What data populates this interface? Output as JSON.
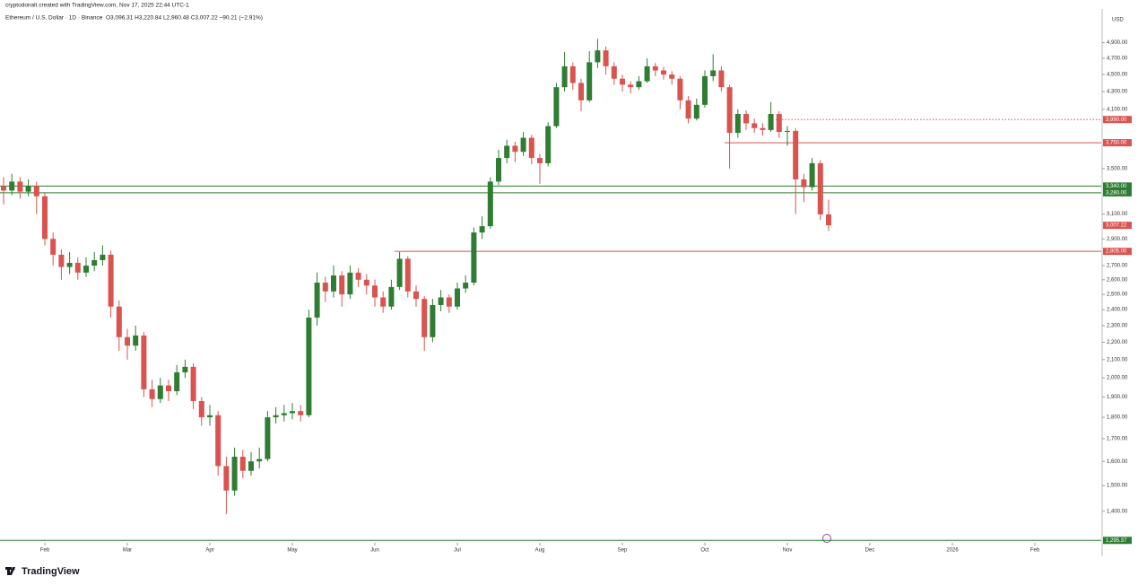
{
  "header": {
    "attribution": "cryptodonalt created with TradingView.com, Nov 17, 2025 22:44 UTC-1",
    "symbol": "Ethereum / U.S. Dollar · 1D · Binance",
    "ohlc": "O3,096.31 H3,220.84 L2,960.48 C3,007.22 −90.21 (−2.91%)"
  },
  "chart_data": {
    "type": "candlestick",
    "currency": "USD",
    "brand": "TradingView",
    "log_scale": true,
    "grid": false,
    "up_color": "#2e7d32",
    "down_color": "#d9534f",
    "categories": [
      null,
      null,
      null,
      null,
      null,
      "Feb",
      null,
      null,
      null,
      null,
      null,
      null,
      null,
      null,
      null,
      "Mar",
      null,
      null,
      null,
      null,
      null,
      null,
      null,
      null,
      null,
      "Apr",
      null,
      null,
      null,
      null,
      null,
      null,
      null,
      null,
      null,
      "May",
      null,
      null,
      null,
      null,
      null,
      null,
      null,
      null,
      null,
      "Jun",
      null,
      null,
      null,
      null,
      null,
      null,
      null,
      null,
      null,
      "Jul",
      null,
      null,
      null,
      null,
      null,
      null,
      null,
      null,
      null,
      "Aug",
      null,
      null,
      null,
      null,
      null,
      null,
      null,
      null,
      null,
      "Sep",
      null,
      null,
      null,
      null,
      null,
      null,
      null,
      null,
      null,
      "Oct",
      null,
      null,
      null,
      null,
      null,
      null,
      null,
      null,
      null,
      "Nov",
      null,
      null,
      null,
      null,
      null,
      null,
      null,
      null,
      null,
      "Dec",
      null,
      null,
      null,
      null,
      null,
      null,
      null,
      null,
      null,
      "2026",
      null,
      null,
      null,
      null,
      null,
      null,
      null,
      null,
      null,
      "Feb",
      null,
      null,
      null,
      null,
      null,
      null,
      null,
      null
    ],
    "open": [
      3340,
      3300,
      3380,
      3290,
      3340,
      3250,
      2900,
      2780,
      2690,
      2720,
      2650,
      2700,
      2740,
      2780,
      2420,
      2230,
      2180,
      2240,
      1940,
      1890,
      1960,
      1930,
      2030,
      2060,
      1880,
      1800,
      1810,
      1580,
      1480,
      1620,
      1560,
      1600,
      1610,
      1800,
      1810,
      1820,
      1830,
      1810,
      2350,
      2580,
      2520,
      2630,
      2500,
      2650,
      2600,
      2560,
      2480,
      2420,
      2550,
      2750,
      2520,
      2470,
      2230,
      2430,
      2480,
      2420,
      2540,
      2580,
      2950,
      3000,
      3380,
      3600,
      3720,
      3660,
      3800,
      3600,
      3550,
      3920,
      4350,
      4600,
      4400,
      4200,
      4650,
      4800,
      4600,
      4450,
      4380,
      4350,
      4420,
      4600,
      4550,
      4500,
      4450,
      4200,
      4000,
      4150,
      4480,
      4550,
      4350,
      3850,
      4050,
      3950,
      3900,
      3880,
      4050,
      3860,
      3870,
      3400,
      3330,
      3550,
      3096.31,
      null,
      null,
      null,
      null,
      null,
      null,
      null,
      null,
      null,
      null,
      null,
      null,
      null,
      null,
      null,
      null,
      null,
      null,
      null,
      null,
      null,
      null,
      null,
      null,
      null,
      null,
      null,
      null,
      null,
      null,
      null,
      null,
      null
    ],
    "high": [
      3420,
      3450,
      3420,
      3400,
      3380,
      3280,
      2950,
      2820,
      2800,
      2760,
      2760,
      2800,
      2850,
      2810,
      2460,
      2280,
      2300,
      2260,
      1990,
      2000,
      1990,
      2070,
      2100,
      2080,
      1900,
      1860,
      1830,
      1620,
      1660,
      1650,
      1640,
      1660,
      1830,
      1850,
      1860,
      1870,
      1860,
      2400,
      2650,
      2620,
      2700,
      2660,
      2700,
      2680,
      2640,
      2600,
      2520,
      2600,
      2800,
      2770,
      2560,
      2490,
      2470,
      2530,
      2500,
      2580,
      2630,
      2990,
      3080,
      3420,
      3680,
      3780,
      3760,
      3860,
      3830,
      3640,
      3960,
      4400,
      4780,
      4650,
      4450,
      4790,
      4950,
      4850,
      4650,
      4500,
      4420,
      4480,
      4700,
      4640,
      4590,
      4540,
      4480,
      4250,
      4220,
      4550,
      4750,
      4600,
      4380,
      4100,
      4090,
      4000,
      3950,
      4180,
      4080,
      3920,
      3900,
      3450,
      3600,
      3580,
      3220.84,
      null,
      null,
      null,
      null,
      null,
      null,
      null,
      null,
      null,
      null,
      null,
      null,
      null,
      null,
      null,
      null,
      null,
      null,
      null,
      null,
      null,
      null,
      null,
      null,
      null,
      null,
      null,
      null,
      null,
      null,
      null,
      null,
      null
    ],
    "low": [
      3180,
      3260,
      3230,
      3250,
      3100,
      2850,
      2700,
      2600,
      2640,
      2600,
      2620,
      2660,
      2700,
      2350,
      2150,
      2100,
      2150,
      1900,
      1850,
      1870,
      1880,
      1910,
      2000,
      1840,
      1760,
      1760,
      1540,
      1390,
      1460,
      1530,
      1540,
      1570,
      1600,
      1770,
      1780,
      1790,
      1780,
      1800,
      2300,
      2450,
      2480,
      2420,
      2470,
      2550,
      2500,
      2420,
      2380,
      2400,
      2530,
      2480,
      2420,
      2150,
      2200,
      2390,
      2380,
      2400,
      2510,
      2560,
      2900,
      2980,
      3350,
      3550,
      3560,
      3620,
      3540,
      3360,
      3520,
      3900,
      4300,
      4320,
      4080,
      4180,
      4580,
      4500,
      4380,
      4300,
      4280,
      4320,
      4400,
      4480,
      4440,
      4380,
      4100,
      3950,
      3980,
      4120,
      4420,
      4300,
      3500,
      3800,
      3880,
      3850,
      3820,
      3860,
      3800,
      3720,
      3100,
      3200,
      3300,
      3050,
      2960.48,
      null,
      null,
      null,
      null,
      null,
      null,
      null,
      null,
      null,
      null,
      null,
      null,
      null,
      null,
      null,
      null,
      null,
      null,
      null,
      null,
      null,
      null,
      null,
      null,
      null,
      null,
      null,
      null,
      null,
      null,
      null,
      null,
      null
    ],
    "close": [
      3300,
      3380,
      3290,
      3340,
      3250,
      2900,
      2780,
      2690,
      2720,
      2650,
      2700,
      2740,
      2780,
      2420,
      2230,
      2180,
      2240,
      1940,
      1890,
      1960,
      1930,
      2030,
      2060,
      1880,
      1800,
      1810,
      1580,
      1480,
      1620,
      1560,
      1600,
      1610,
      1800,
      1810,
      1820,
      1830,
      1810,
      2350,
      2580,
      2520,
      2630,
      2500,
      2650,
      2600,
      2560,
      2480,
      2420,
      2550,
      2750,
      2520,
      2470,
      2230,
      2430,
      2480,
      2420,
      2540,
      2580,
      2950,
      3000,
      3380,
      3600,
      3720,
      3660,
      3800,
      3600,
      3550,
      3920,
      4350,
      4600,
      4400,
      4200,
      4650,
      4800,
      4600,
      4450,
      4380,
      4350,
      4420,
      4600,
      4550,
      4500,
      4450,
      4200,
      4000,
      4150,
      4480,
      4550,
      4350,
      3850,
      4050,
      3950,
      3900,
      3880,
      4050,
      3860,
      3870,
      3400,
      3330,
      3550,
      3096.31,
      3007.22,
      null,
      null,
      null,
      null,
      null,
      null,
      null,
      null,
      null,
      null,
      null,
      null,
      null,
      null,
      null,
      null,
      null,
      null,
      null,
      null,
      null,
      null,
      null,
      null,
      null,
      null,
      null,
      null,
      null,
      null,
      null,
      null,
      null
    ],
    "last_price_label": "3,007.22",
    "ylim": [
      1290,
      5260
    ],
    "yticks": [
      {
        "value": 1400,
        "label": "1,400.00"
      },
      {
        "value": 1500,
        "label": "1,500.00"
      },
      {
        "value": 1600,
        "label": "1,600.00"
      },
      {
        "value": 1700,
        "label": "1,700.00"
      },
      {
        "value": 1800,
        "label": "1,800.00"
      },
      {
        "value": 1900,
        "label": "1,900.00"
      },
      {
        "value": 2000,
        "label": "2,000.00"
      },
      {
        "value": 2100,
        "label": "2,100.00"
      },
      {
        "value": 2200,
        "label": "2,200.00"
      },
      {
        "value": 2300,
        "label": "2,300.00"
      },
      {
        "value": 2400,
        "label": "2,400.00"
      },
      {
        "value": 2500,
        "label": "2,500.00"
      },
      {
        "value": 2600,
        "label": "2,600.00"
      },
      {
        "value": 2700,
        "label": "2,700.00"
      },
      {
        "value": 2900,
        "label": "2,900.00"
      },
      {
        "value": 3100,
        "label": "3,100.00"
      },
      {
        "value": 3500,
        "label": "3,500.00"
      },
      {
        "value": 4100,
        "label": "4,100.00"
      },
      {
        "value": 4300,
        "label": "4,300.00"
      },
      {
        "value": 4500,
        "label": "4,500.00"
      },
      {
        "value": 4700,
        "label": "4,700.00"
      },
      {
        "value": 4900,
        "label": "4,900.00"
      }
    ],
    "levels": [
      {
        "value": 3340,
        "label": "3,340.00",
        "color": "#2e7d32",
        "style": "solid"
      },
      {
        "value": 3280,
        "label": "3,280.00",
        "color": "#2e7d32",
        "style": "solid"
      },
      {
        "value": 3750,
        "label": "3,750.00",
        "color": "#d9534f",
        "style": "solid"
      },
      {
        "value": 3990,
        "label": "3,990.00",
        "color": "#d9534f",
        "style": "dotted"
      },
      {
        "value": 2805,
        "label": "2,805.00",
        "color": "#d9534f",
        "style": "solid"
      },
      {
        "value": 1295.37,
        "label": "1,295.37",
        "color": "#2e7d32",
        "style": "solid"
      }
    ]
  }
}
